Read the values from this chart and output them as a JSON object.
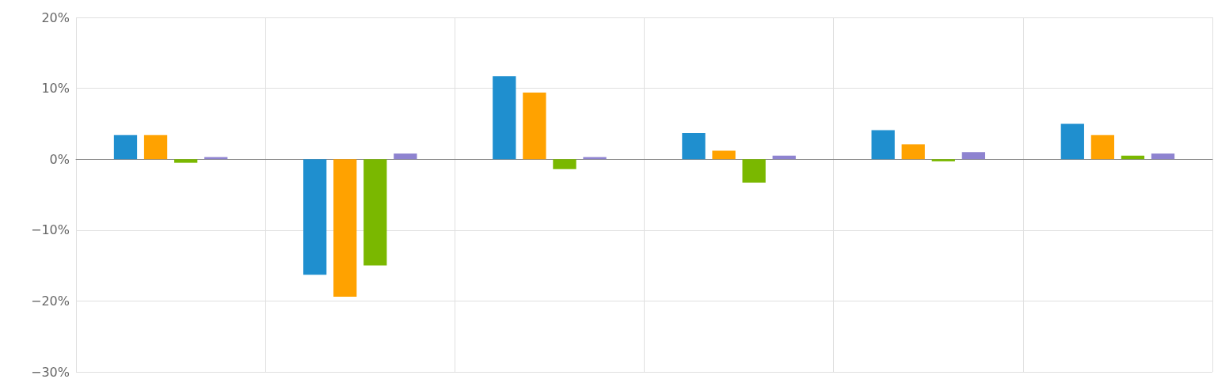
{
  "chart_data": {
    "type": "bar",
    "categories": [
      null,
      null,
      null,
      null,
      null,
      null
    ],
    "series": [
      {
        "color": "#1f8fcf",
        "values": [
          3.4,
          -16.3,
          11.7,
          3.7,
          4.1,
          5.0
        ]
      },
      {
        "color": "#ffa200",
        "values": [
          3.4,
          -19.4,
          9.4,
          1.2,
          2.1,
          3.4
        ]
      },
      {
        "color": "#7ab800",
        "values": [
          -0.5,
          -15.0,
          -1.4,
          -3.3,
          -0.3,
          0.5
        ]
      },
      {
        "color": "#8e83d0",
        "values": [
          0.3,
          0.8,
          0.3,
          0.5,
          1.0,
          0.8
        ]
      }
    ],
    "ylim": [
      -30,
      20
    ],
    "yticks": [
      {
        "value": -30,
        "label": "−30%"
      },
      {
        "value": -20,
        "label": "−20%"
      },
      {
        "value": -10,
        "label": "−10%"
      },
      {
        "value": 0,
        "label": "0%"
      },
      {
        "value": 10,
        "label": "10%"
      },
      {
        "value": 20,
        "label": "20%"
      }
    ],
    "grid": true,
    "tick_labels": "y"
  }
}
